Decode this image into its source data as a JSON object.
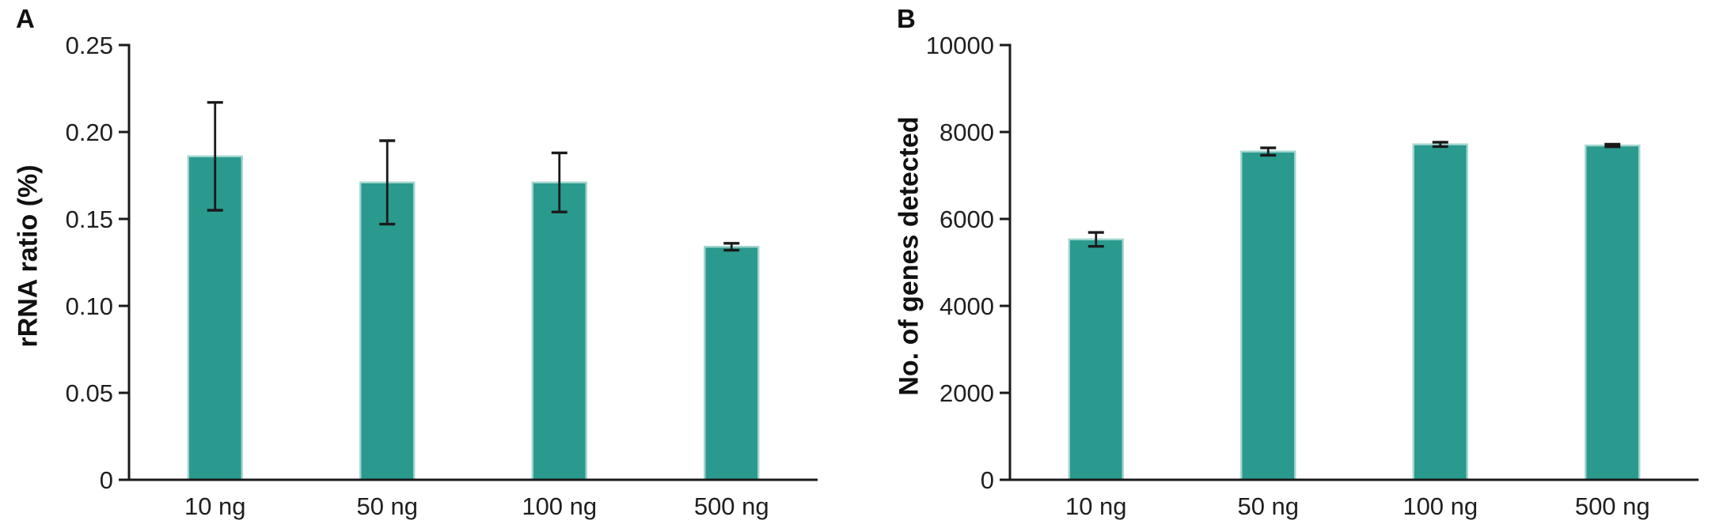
{
  "figure": {
    "background": "#ffffff"
  },
  "colors": {
    "bar_fill": "#2a9a8f",
    "bar_edge": "#a3d6cf",
    "error_bar": "#1a1a1a",
    "axis": "#1a1a1a",
    "text": "#1f1f1f"
  },
  "chart_data": [
    {
      "type": "bar",
      "panel_label": "A",
      "title": "",
      "xlabel": "",
      "ylabel": "rRNA ratio (%)",
      "categories": [
        "10 ng",
        "50 ng",
        "100 ng",
        "500 ng"
      ],
      "values": [
        0.186,
        0.171,
        0.171,
        0.134
      ],
      "errors": [
        0.031,
        0.024,
        0.017,
        0.002
      ],
      "ylim": [
        0,
        0.25
      ],
      "ytick_values": [
        0,
        0.05,
        0.1,
        0.15,
        0.2,
        0.25
      ],
      "ytick_labels": [
        "0",
        "0.05",
        "0.10",
        "0.15",
        "0.20",
        "0.25"
      ],
      "grid": false,
      "legend": null
    },
    {
      "type": "bar",
      "panel_label": "B",
      "title": "",
      "xlabel": "",
      "ylabel": "No. of genes detected",
      "categories": [
        "10 ng",
        "50 ng",
        "100 ng",
        "500 ng"
      ],
      "values": [
        5530,
        7550,
        7715,
        7690
      ],
      "errors": [
        160,
        85,
        50,
        30
      ],
      "ylim": [
        0,
        10000
      ],
      "ytick_values": [
        0,
        2000,
        4000,
        6000,
        8000,
        10000
      ],
      "ytick_labels": [
        "0",
        "2000",
        "4000",
        "6000",
        "8000",
        "10000"
      ],
      "grid": false,
      "legend": null
    }
  ]
}
